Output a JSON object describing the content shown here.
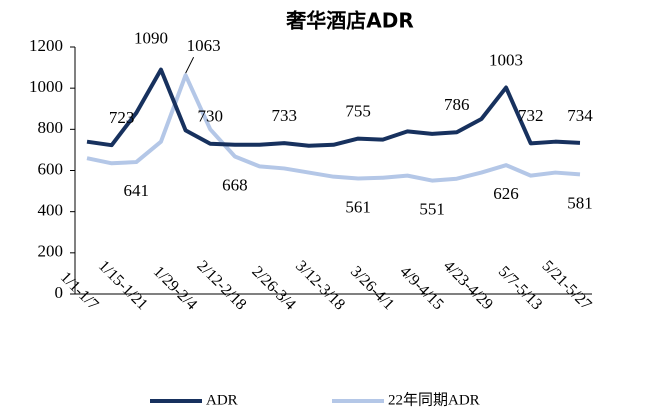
{
  "chart_data": {
    "type": "line",
    "title": "奢华酒店ADR",
    "categories": [
      "1/1-1/7",
      null,
      "1/15-1/21",
      null,
      "1/29-2/4",
      null,
      "2/12-2/18",
      null,
      "2/26-3/4",
      null,
      "3/12-3/18",
      null,
      "3/26-4/1",
      null,
      "4/9-4/15",
      null,
      "4/23-4/29",
      null,
      "5/7-5/13",
      null,
      "5/21-5/27"
    ],
    "series": [
      {
        "name": "ADR",
        "color": "#17315e",
        "values": [
          740,
          723,
          880,
          1090,
          795,
          730,
          725,
          725,
          733,
          720,
          725,
          755,
          750,
          790,
          778,
          786,
          850,
          1003,
          732,
          740,
          734
        ],
        "value_labels": [
          null,
          "723",
          null,
          "1090",
          null,
          "730",
          null,
          null,
          "733",
          null,
          null,
          "755",
          null,
          null,
          null,
          "786",
          null,
          "1003",
          "732",
          null,
          "734"
        ]
      },
      {
        "name": "22年同期ADR",
        "color": "#b4c7e7",
        "values": [
          660,
          635,
          641,
          740,
          1063,
          800,
          668,
          620,
          610,
          590,
          570,
          561,
          565,
          575,
          551,
          560,
          590,
          626,
          575,
          590,
          581
        ],
        "value_labels": [
          null,
          null,
          "641",
          null,
          "1063",
          null,
          "668",
          null,
          null,
          null,
          null,
          "561",
          null,
          null,
          "551",
          null,
          null,
          "626",
          null,
          null,
          "581"
        ]
      }
    ],
    "ylim": [
      0,
      1200
    ],
    "yticks": [
      0,
      200,
      400,
      600,
      800,
      1000,
      1200
    ],
    "legend": "bottom"
  }
}
